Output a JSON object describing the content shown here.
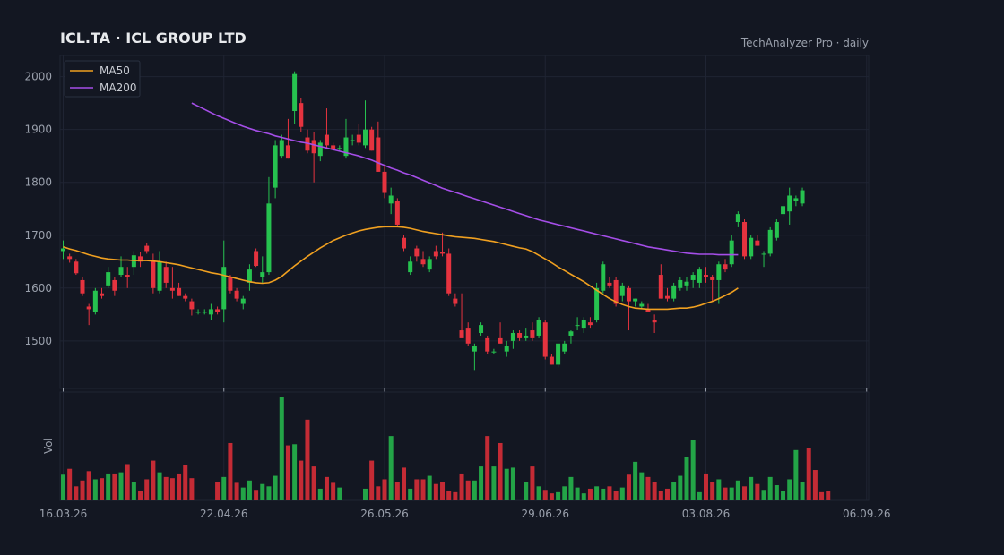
{
  "chart_data": {
    "type": "candlestick",
    "title": "ICL.TA  ·  ICL GROUP LTD",
    "subtitle": "TechAnalyzer Pro · daily",
    "ylabel_volume": "Vol",
    "ylim": [
      1410,
      2040
    ],
    "y_ticks": [
      1500,
      1600,
      1700,
      1800,
      1900,
      2000
    ],
    "x_tick_labels": [
      "16.03.26",
      "22.04.26",
      "26.05.26",
      "29.06.26",
      "03.08.26",
      "06.09.26"
    ],
    "x_tick_indices": [
      0,
      25,
      50,
      75,
      100,
      125
    ],
    "grid": true,
    "legend_position": "top-left",
    "colors": {
      "background": "#131722",
      "grid": "#1f2433",
      "up": "#26c24f",
      "down": "#e5333f",
      "ma50": "#f0a020",
      "ma200": "#a54ee8",
      "text": "#9aa0ac",
      "title": "#e8eaed"
    },
    "legend": [
      {
        "name": "MA50",
        "color": "#f0a020"
      },
      {
        "name": "MA200",
        "color": "#a54ee8"
      }
    ],
    "ohlc": [
      [
        1670,
        1690,
        1655,
        1675
      ],
      [
        1660,
        1665,
        1648,
        1655
      ],
      [
        1650,
        1655,
        1625,
        1628
      ],
      [
        1615,
        1620,
        1585,
        1590
      ],
      [
        1565,
        1570,
        1530,
        1560
      ],
      [
        1555,
        1600,
        1550,
        1595
      ],
      [
        1590,
        1600,
        1580,
        1585
      ],
      [
        1605,
        1640,
        1600,
        1630
      ],
      [
        1615,
        1620,
        1585,
        1595
      ],
      [
        1625,
        1660,
        1620,
        1640
      ],
      [
        1625,
        1640,
        1600,
        1620
      ],
      [
        1640,
        1670,
        1625,
        1662
      ],
      [
        1660,
        1668,
        1640,
        1650
      ],
      [
        1680,
        1685,
        1665,
        1670
      ],
      [
        1650,
        1665,
        1590,
        1600
      ],
      [
        1595,
        1670,
        1590,
        1650
      ],
      [
        1640,
        1650,
        1600,
        1610
      ],
      [
        1600,
        1640,
        1580,
        1595
      ],
      [
        1600,
        1610,
        1585,
        1585
      ],
      [
        1585,
        1590,
        1575,
        1580
      ],
      [
        1575,
        1580,
        1548,
        1560
      ],
      [
        1555,
        1560,
        1550,
        1555
      ],
      [
        1555,
        1560,
        1550,
        1555
      ],
      [
        1550,
        1570,
        1540,
        1560
      ],
      [
        1560,
        1565,
        1550,
        1555
      ],
      [
        1560,
        1690,
        1535,
        1640
      ],
      [
        1620,
        1625,
        1590,
        1595
      ],
      [
        1595,
        1600,
        1575,
        1580
      ],
      [
        1570,
        1585,
        1560,
        1580
      ],
      [
        1610,
        1645,
        1595,
        1635
      ],
      [
        1670,
        1675,
        1640,
        1642
      ],
      [
        1620,
        1660,
        1610,
        1630
      ],
      [
        1630,
        1810,
        1625,
        1760
      ],
      [
        1790,
        1880,
        1770,
        1870
      ],
      [
        1850,
        1890,
        1845,
        1880
      ],
      [
        1870,
        1920,
        1845,
        1845
      ],
      [
        1935,
        2010,
        1910,
        2005
      ],
      [
        1950,
        1960,
        1895,
        1905
      ],
      [
        1885,
        1900,
        1855,
        1860
      ],
      [
        1880,
        1895,
        1800,
        1855
      ],
      [
        1850,
        1880,
        1840,
        1875
      ],
      [
        1890,
        1940,
        1865,
        1870
      ],
      [
        1870,
        1875,
        1860,
        1862
      ],
      [
        1865,
        1870,
        1860,
        1865
      ],
      [
        1850,
        1920,
        1845,
        1885
      ],
      [
        1880,
        1890,
        1870,
        1880
      ],
      [
        1890,
        1910,
        1870,
        1875
      ],
      [
        1870,
        1955,
        1865,
        1900
      ],
      [
        1900,
        1905,
        1860,
        1860
      ],
      [
        1885,
        1915,
        1820,
        1820
      ],
      [
        1820,
        1830,
        1770,
        1780
      ],
      [
        1760,
        1790,
        1740,
        1775
      ],
      [
        1765,
        1770,
        1715,
        1720
      ],
      [
        1695,
        1700,
        1670,
        1675
      ],
      [
        1630,
        1660,
        1625,
        1650
      ],
      [
        1675,
        1680,
        1650,
        1660
      ],
      [
        1655,
        1670,
        1640,
        1645
      ],
      [
        1635,
        1660,
        1630,
        1655
      ],
      [
        1670,
        1680,
        1655,
        1660
      ],
      [
        1668,
        1705,
        1660,
        1665
      ],
      [
        1665,
        1675,
        1585,
        1590
      ],
      [
        1580,
        1590,
        1565,
        1570
      ],
      [
        1520,
        1590,
        1510,
        1505
      ],
      [
        1525,
        1535,
        1490,
        1495
      ],
      [
        1480,
        1495,
        1445,
        1490
      ],
      [
        1515,
        1535,
        1510,
        1530
      ],
      [
        1505,
        1510,
        1475,
        1480
      ],
      [
        1480,
        1485,
        1475,
        1480
      ],
      [
        1505,
        1535,
        1495,
        1495
      ],
      [
        1480,
        1500,
        1470,
        1490
      ],
      [
        1500,
        1520,
        1485,
        1515
      ],
      [
        1515,
        1520,
        1500,
        1505
      ],
      [
        1505,
        1525,
        1500,
        1510
      ],
      [
        1520,
        1535,
        1500,
        1505
      ],
      [
        1510,
        1545,
        1505,
        1540
      ],
      [
        1535,
        1540,
        1465,
        1470
      ],
      [
        1470,
        1475,
        1455,
        1455
      ],
      [
        1455,
        1495,
        1450,
        1495
      ],
      [
        1480,
        1500,
        1475,
        1495
      ],
      [
        1510,
        1520,
        1495,
        1518
      ],
      [
        1530,
        1545,
        1520,
        1530
      ],
      [
        1525,
        1545,
        1515,
        1540
      ],
      [
        1535,
        1545,
        1525,
        1530
      ],
      [
        1540,
        1610,
        1535,
        1600
      ],
      [
        1595,
        1650,
        1590,
        1645
      ],
      [
        1610,
        1620,
        1600,
        1605
      ],
      [
        1615,
        1620,
        1565,
        1570
      ],
      [
        1585,
        1610,
        1575,
        1605
      ],
      [
        1600,
        1605,
        1520,
        1575
      ],
      [
        1575,
        1580,
        1565,
        1580
      ],
      [
        1565,
        1575,
        1560,
        1570
      ],
      [
        1560,
        1570,
        1555,
        1555
      ],
      [
        1540,
        1550,
        1515,
        1535
      ],
      [
        1625,
        1645,
        1580,
        1580
      ],
      [
        1585,
        1600,
        1575,
        1580
      ],
      [
        1580,
        1610,
        1575,
        1605
      ],
      [
        1600,
        1620,
        1595,
        1615
      ],
      [
        1605,
        1620,
        1595,
        1612
      ],
      [
        1615,
        1630,
        1600,
        1625
      ],
      [
        1610,
        1640,
        1600,
        1635
      ],
      [
        1625,
        1640,
        1610,
        1620
      ],
      [
        1620,
        1625,
        1575,
        1615
      ],
      [
        1615,
        1650,
        1570,
        1645
      ],
      [
        1645,
        1655,
        1630,
        1635
      ],
      [
        1645,
        1700,
        1640,
        1690
      ],
      [
        1725,
        1745,
        1715,
        1740
      ],
      [
        1725,
        1730,
        1655,
        1660
      ],
      [
        1660,
        1700,
        1655,
        1695
      ],
      [
        1690,
        1700,
        1680,
        1680
      ],
      [
        1665,
        1670,
        1640,
        1665
      ],
      [
        1665,
        1715,
        1660,
        1710
      ],
      [
        1695,
        1730,
        1690,
        1725
      ],
      [
        1740,
        1760,
        1735,
        1755
      ],
      [
        1745,
        1790,
        1720,
        1775
      ],
      [
        1765,
        1775,
        1755,
        1770
      ],
      [
        1760,
        1790,
        1755,
        1785
      ]
    ],
    "volume": [
      22,
      27,
      12,
      17,
      25,
      18,
      19,
      23,
      23,
      24,
      31,
      16,
      8,
      18,
      34,
      24,
      20,
      19,
      23,
      30,
      19,
      0,
      0,
      0,
      16,
      20,
      49,
      15,
      11,
      17,
      9,
      14,
      12,
      21,
      88,
      47,
      48,
      34,
      69,
      29,
      10,
      20,
      15,
      11,
      0,
      0,
      0,
      10,
      34,
      12,
      18,
      55,
      16,
      28,
      10,
      18,
      18,
      21,
      14,
      16,
      8,
      7,
      23,
      17,
      17,
      29,
      55,
      29,
      49,
      27,
      28,
      0,
      16,
      29,
      12,
      9,
      6,
      7,
      12,
      20,
      11,
      6,
      10,
      12,
      10,
      12,
      8,
      11,
      22,
      33,
      24,
      20,
      16,
      8,
      10,
      16,
      21,
      37,
      52,
      7,
      23,
      16,
      18,
      11,
      11,
      17,
      12,
      20,
      14,
      9,
      20,
      13,
      8,
      18,
      43,
      16,
      45,
      26,
      7,
      8
    ],
    "ma50_start_index": 0,
    "ma50": [
      1678,
      1674,
      1671,
      1667,
      1663,
      1660,
      1657,
      1655,
      1654,
      1653,
      1653,
      1652,
      1652,
      1652,
      1651,
      1650,
      1648,
      1646,
      1644,
      1641,
      1638,
      1635,
      1632,
      1629,
      1627,
      1624,
      1621,
      1618,
      1615,
      1612,
      1610,
      1609,
      1610,
      1615,
      1622,
      1632,
      1642,
      1651,
      1660,
      1668,
      1676,
      1683,
      1690,
      1695,
      1700,
      1704,
      1708,
      1711,
      1713,
      1715,
      1716,
      1716,
      1716,
      1715,
      1713,
      1710,
      1707,
      1705,
      1703,
      1701,
      1699,
      1697,
      1696,
      1695,
      1694,
      1692,
      1690,
      1688,
      1685,
      1682,
      1679,
      1676,
      1674,
      1669,
      1662,
      1655,
      1648,
      1640,
      1633,
      1626,
      1619,
      1612,
      1604,
      1596,
      1588,
      1580,
      1574,
      1569,
      1565,
      1562,
      1561,
      1560,
      1560,
      1560,
      1560,
      1561,
      1562,
      1562,
      1564,
      1567,
      1571,
      1575,
      1580,
      1586,
      1592,
      1600
    ],
    "ma200_start_index": 20,
    "ma200": [
      1950,
      1944,
      1938,
      1932,
      1926,
      1921,
      1916,
      1911,
      1906,
      1902,
      1898,
      1895,
      1892,
      1888,
      1885,
      1882,
      1879,
      1876,
      1874,
      1871,
      1868,
      1865,
      1862,
      1859,
      1856,
      1853,
      1850,
      1846,
      1842,
      1837,
      1832,
      1827,
      1823,
      1818,
      1814,
      1809,
      1804,
      1799,
      1794,
      1789,
      1785,
      1781,
      1777,
      1773,
      1769,
      1765,
      1761,
      1757,
      1753,
      1749,
      1745,
      1741,
      1737,
      1733,
      1729,
      1726,
      1723,
      1720,
      1717,
      1714,
      1711,
      1708,
      1705,
      1702,
      1699,
      1696,
      1693,
      1690,
      1687,
      1684,
      1681,
      1678,
      1676,
      1674,
      1672,
      1670,
      1668,
      1666,
      1665,
      1664,
      1664,
      1664,
      1663,
      1663,
      1663,
      1663
    ]
  }
}
